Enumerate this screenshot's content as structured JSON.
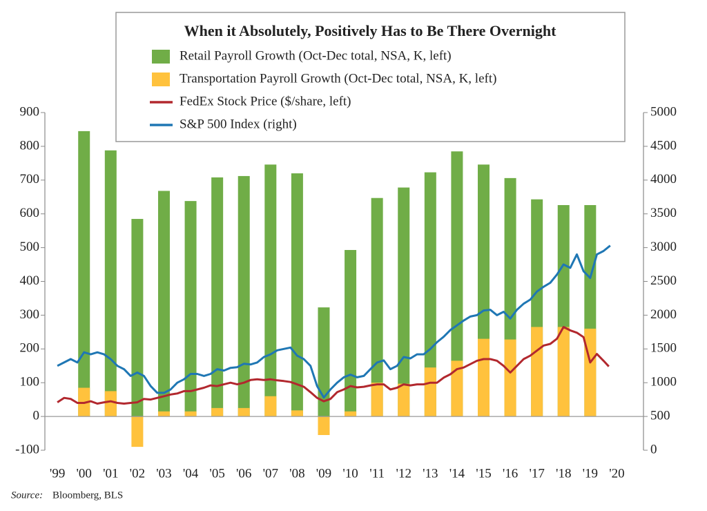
{
  "chart_data": {
    "type": "combo",
    "title": "When it Absolutely, Positively Has to Be There Overnight",
    "source_label": "Source:",
    "source": "Bloomberg, BLS",
    "xlim": [
      1998.53,
      2021
    ],
    "xticks": [
      {
        "value": 1999,
        "label": "'99"
      },
      {
        "value": 2000,
        "label": "'00"
      },
      {
        "value": 2001,
        "label": "'01"
      },
      {
        "value": 2002,
        "label": "'02"
      },
      {
        "value": 2003,
        "label": "'03"
      },
      {
        "value": 2004,
        "label": "'04"
      },
      {
        "value": 2005,
        "label": "'05"
      },
      {
        "value": 2006,
        "label": "'06"
      },
      {
        "value": 2007,
        "label": "'07"
      },
      {
        "value": 2008,
        "label": "'08"
      },
      {
        "value": 2009,
        "label": "'09"
      },
      {
        "value": 2010,
        "label": "'10"
      },
      {
        "value": 2011,
        "label": "'11"
      },
      {
        "value": 2012,
        "label": "'12"
      },
      {
        "value": 2013,
        "label": "'13"
      },
      {
        "value": 2014,
        "label": "'14"
      },
      {
        "value": 2015,
        "label": "'15"
      },
      {
        "value": 2016,
        "label": "'16"
      },
      {
        "value": 2017,
        "label": "'17"
      },
      {
        "value": 2018,
        "label": "'18"
      },
      {
        "value": 2019,
        "label": "'19"
      },
      {
        "value": 2020,
        "label": "'20"
      }
    ],
    "ylim": [
      -100,
      900
    ],
    "yticks": [
      -100,
      0,
      100,
      200,
      300,
      400,
      500,
      600,
      700,
      800,
      900
    ],
    "y2lim": [
      0,
      5000
    ],
    "y2ticks": [
      0,
      500,
      1000,
      1500,
      2000,
      2500,
      3000,
      3500,
      4000,
      4500,
      5000
    ],
    "series": [
      {
        "name": "Retail Payroll Growth (Oct-Dec total, NSA, K, left)",
        "type": "bar",
        "color": "#70ad47",
        "x": [
          2000,
          2001,
          2002,
          2003,
          2004,
          2005,
          2006,
          2007,
          2008,
          2009,
          2010,
          2011,
          2012,
          2013,
          2014,
          2015,
          2016,
          2017,
          2018,
          2019
        ],
        "values": [
          845,
          788,
          585,
          668,
          638,
          708,
          712,
          746,
          720,
          323,
          493,
          647,
          678,
          723,
          785,
          746,
          706,
          643,
          626,
          626
        ]
      },
      {
        "name": "Transportation Payroll Growth (Oct-Dec total, NSA, K, left)",
        "type": "bar",
        "color": "#ffc23d",
        "x": [
          2000,
          2001,
          2002,
          2003,
          2004,
          2005,
          2006,
          2007,
          2008,
          2009,
          2010,
          2011,
          2012,
          2013,
          2014,
          2015,
          2016,
          2017,
          2018,
          2019
        ],
        "values": [
          85,
          75,
          -90,
          15,
          15,
          25,
          25,
          60,
          18,
          -55,
          15,
          100,
          97,
          145,
          165,
          230,
          228,
          265,
          265,
          260
        ]
      },
      {
        "name": "FedEx Stock Price ($/share, left)",
        "type": "line",
        "color": "#b2282e",
        "x": [
          1999,
          1999.25,
          1999.5,
          1999.75,
          2000,
          2000.25,
          2000.5,
          2000.75,
          2001,
          2001.25,
          2001.5,
          2001.75,
          2002,
          2002.25,
          2002.5,
          2002.75,
          2003,
          2003.25,
          2003.5,
          2003.75,
          2004,
          2004.25,
          2004.5,
          2004.75,
          2005,
          2005.25,
          2005.5,
          2005.75,
          2006,
          2006.25,
          2006.5,
          2006.75,
          2007,
          2007.25,
          2007.5,
          2007.75,
          2008,
          2008.25,
          2008.5,
          2008.75,
          2009,
          2009.25,
          2009.5,
          2009.75,
          2010,
          2010.25,
          2010.5,
          2010.75,
          2011,
          2011.25,
          2011.5,
          2011.75,
          2012,
          2012.25,
          2012.5,
          2012.75,
          2013,
          2013.25,
          2013.5,
          2013.75,
          2014,
          2014.25,
          2014.5,
          2014.75,
          2015,
          2015.25,
          2015.5,
          2015.75,
          2016,
          2016.25,
          2016.5,
          2016.75,
          2017,
          2017.25,
          2017.5,
          2017.75,
          2018,
          2018.25,
          2018.5,
          2018.75,
          2019,
          2019.25,
          2019.5,
          2019.7
        ],
        "values": [
          42,
          55,
          52,
          40,
          40,
          45,
          38,
          42,
          45,
          40,
          38,
          40,
          42,
          52,
          50,
          55,
          60,
          65,
          68,
          75,
          75,
          80,
          85,
          92,
          90,
          95,
          100,
          95,
          100,
          108,
          110,
          108,
          110,
          107,
          105,
          102,
          95,
          88,
          72,
          55,
          45,
          52,
          72,
          80,
          90,
          86,
          88,
          92,
          95,
          95,
          80,
          85,
          95,
          92,
          95,
          95,
          100,
          100,
          115,
          125,
          140,
          145,
          155,
          165,
          170,
          170,
          165,
          150,
          130,
          150,
          170,
          180,
          195,
          210,
          215,
          230,
          265,
          255,
          248,
          235,
          160,
          185,
          165,
          148
        ]
      },
      {
        "name": "S&P 500 Index (right)",
        "type": "line",
        "axis": "y2",
        "color": "#1f77b4",
        "x": [
          1999,
          1999.25,
          1999.5,
          1999.75,
          2000,
          2000.25,
          2000.5,
          2000.75,
          2001,
          2001.25,
          2001.5,
          2001.75,
          2002,
          2002.25,
          2002.5,
          2002.75,
          2003,
          2003.25,
          2003.5,
          2003.75,
          2004,
          2004.25,
          2004.5,
          2004.75,
          2005,
          2005.25,
          2005.5,
          2005.75,
          2006,
          2006.25,
          2006.5,
          2006.75,
          2007,
          2007.25,
          2007.5,
          2007.75,
          2008,
          2008.25,
          2008.5,
          2008.75,
          2009,
          2009.25,
          2009.5,
          2009.75,
          2010,
          2010.25,
          2010.5,
          2010.75,
          2011,
          2011.25,
          2011.5,
          2011.75,
          2012,
          2012.25,
          2012.5,
          2012.75,
          2013,
          2013.25,
          2013.5,
          2013.75,
          2014,
          2014.25,
          2014.5,
          2014.75,
          2015,
          2015.25,
          2015.5,
          2015.75,
          2016,
          2016.25,
          2016.5,
          2016.75,
          2017,
          2017.25,
          2017.5,
          2017.75,
          2018,
          2018.25,
          2018.5,
          2018.75,
          2019,
          2019.25,
          2019.5,
          2019.75
        ],
        "values": [
          1250,
          1300,
          1350,
          1300,
          1450,
          1420,
          1450,
          1420,
          1350,
          1250,
          1200,
          1100,
          1150,
          1100,
          950,
          850,
          850,
          900,
          1000,
          1050,
          1130,
          1130,
          1100,
          1130,
          1200,
          1180,
          1220,
          1230,
          1280,
          1270,
          1300,
          1380,
          1420,
          1480,
          1500,
          1520,
          1400,
          1350,
          1250,
          950,
          780,
          900,
          1000,
          1080,
          1120,
          1080,
          1100,
          1200,
          1300,
          1330,
          1200,
          1250,
          1380,
          1360,
          1420,
          1420,
          1500,
          1600,
          1680,
          1780,
          1850,
          1920,
          1980,
          2000,
          2070,
          2080,
          2000,
          2050,
          1950,
          2080,
          2170,
          2230,
          2350,
          2420,
          2480,
          2600,
          2750,
          2700,
          2900,
          2650,
          2550,
          2900,
          2950,
          3030
        ]
      }
    ]
  }
}
